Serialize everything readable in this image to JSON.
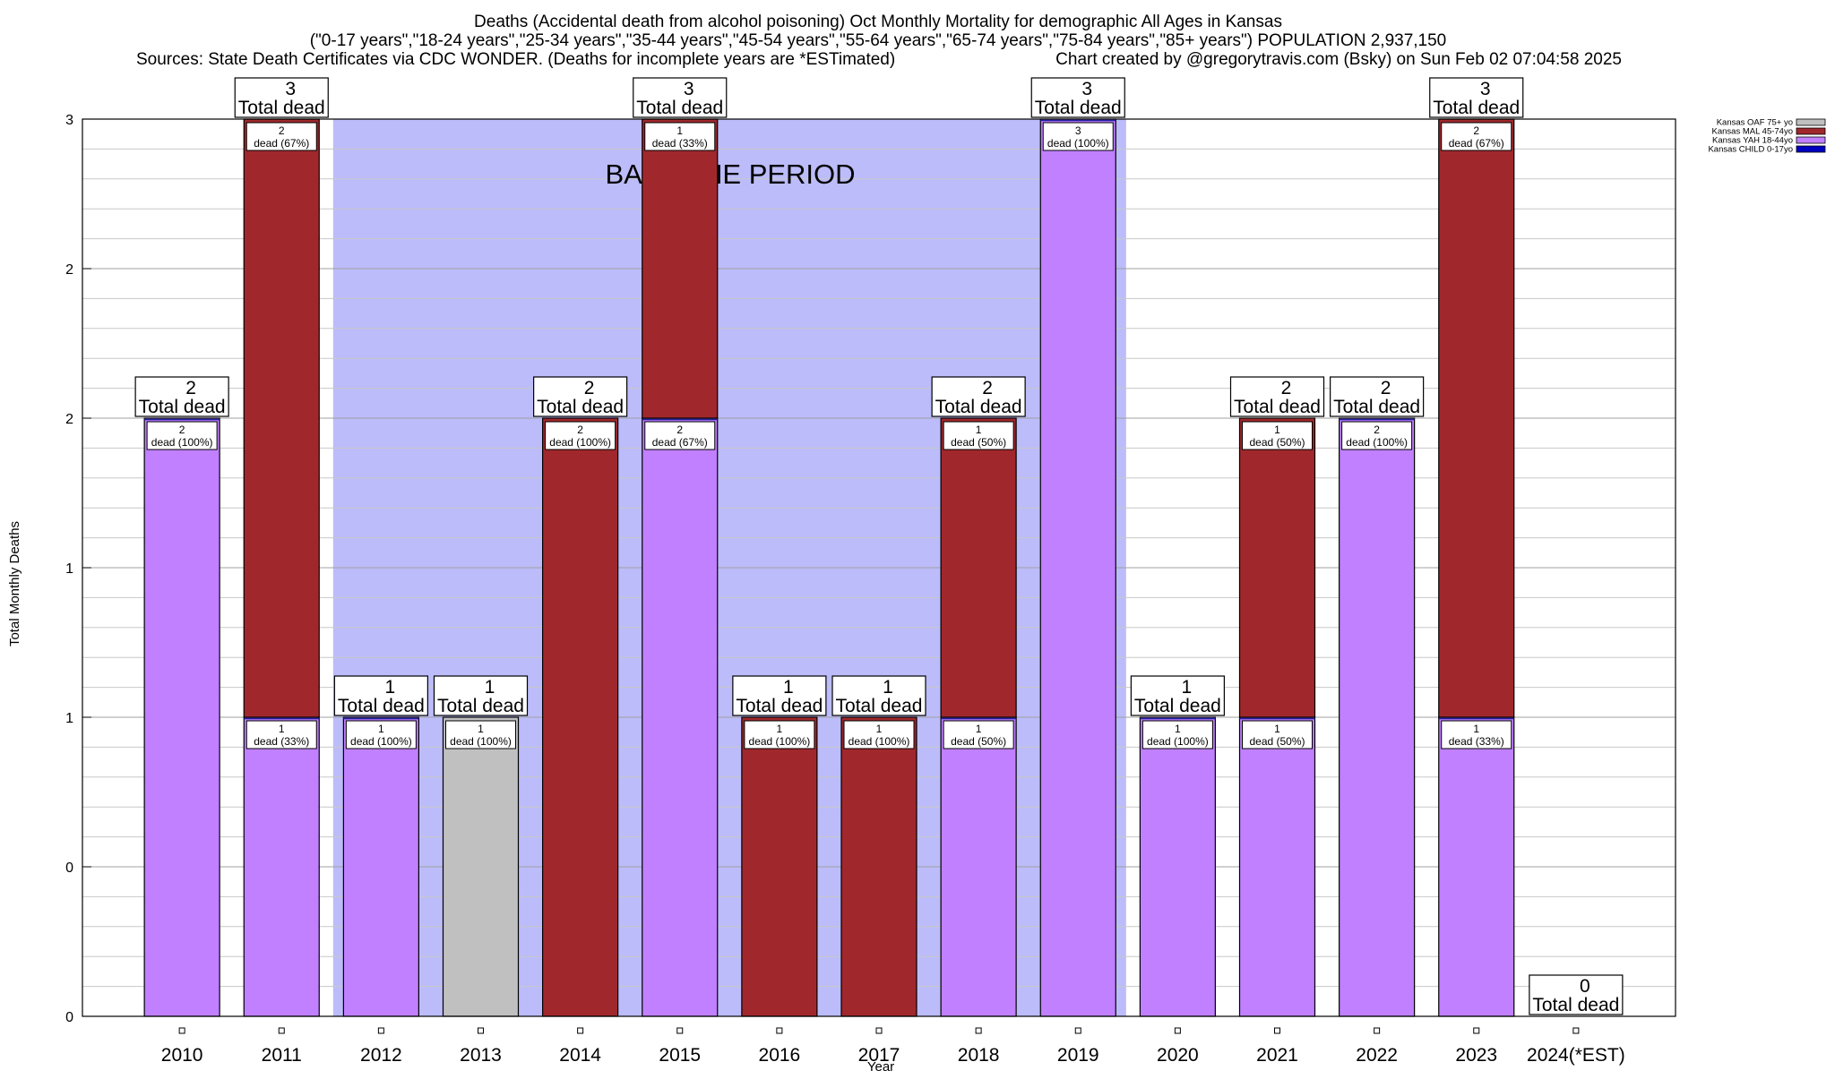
{
  "chart_data": {
    "type": "bar",
    "stacked": true,
    "title_lines": [
      "Deaths (Accidental death from alcohol poisoning) Oct Monthly Mortality for demographic All Ages in Kansas",
      "(\"0-17 years\",\"18-24 years\",\"25-34 years\",\"35-44 years\",\"45-54 years\",\"55-64 years\",\"65-74 years\",\"75-84 years\",\"85+ years\") POPULATION 2,937,150"
    ],
    "sources_text": "Sources: State Death Certificates via CDC WONDER. (Deaths for incomplete years are *ESTimated)",
    "credit_text": "Chart created by @gregorytravis.com (Bsky) on Sun Feb 02 07:04:58 2025",
    "xlabel": "Year",
    "ylabel": "Total Monthly Deaths",
    "ylim": [
      0,
      3
    ],
    "y_tick_values": [
      0,
      0.5,
      1,
      1.5,
      2,
      2.5,
      3
    ],
    "y_tick_labels": [
      "0",
      "0",
      "1",
      "1",
      "2",
      "2",
      "3"
    ],
    "grid": true,
    "legend_position": "top-right",
    "baseline_label": "BASELINE PERIOD",
    "baseline_range": [
      "2012",
      "2019"
    ],
    "total_caption": "Total dead",
    "categories": [
      "2010",
      "2011",
      "2012",
      "2013",
      "2014",
      "2015",
      "2016",
      "2017",
      "2018",
      "2019",
      "2020",
      "2021",
      "2022",
      "2023",
      "2024(*EST)"
    ],
    "series": [
      {
        "name": "Kansas OAF 75+ yo",
        "color": "#c0c0c0",
        "values": [
          0,
          0,
          0,
          1,
          0,
          0,
          0,
          0,
          0,
          0,
          0,
          0,
          0,
          0,
          0
        ]
      },
      {
        "name": "Kansas MAL 45-74yo",
        "color": "#a0282c",
        "values": [
          0,
          2,
          0,
          0,
          2,
          1,
          1,
          1,
          1,
          0,
          0,
          1,
          0,
          2,
          0
        ]
      },
      {
        "name": "Kansas YAH 18-44yo",
        "color": "#c080ff",
        "values": [
          2,
          1,
          1,
          0,
          0,
          2,
          0,
          0,
          1,
          3,
          1,
          1,
          2,
          1,
          0
        ]
      },
      {
        "name": "Kansas CHILD 0-17yo",
        "color": "#0000c0",
        "values": [
          0,
          0,
          0,
          0,
          0,
          0,
          0,
          0,
          0,
          0,
          0,
          0,
          0,
          0,
          0
        ]
      }
    ],
    "stack_order": [
      "Kansas YAH 18-44yo",
      "Kansas OAF 75+ yo",
      "Kansas MAL 45-74yo"
    ],
    "totals": [
      2,
      3,
      1,
      1,
      2,
      3,
      1,
      1,
      2,
      3,
      1,
      2,
      2,
      3,
      0
    ],
    "segment_labels": [
      [
        {
          "series": "Kansas YAH 18-44yo",
          "count": "2",
          "text": "dead (100%)"
        }
      ],
      [
        {
          "series": "Kansas YAH 18-44yo",
          "count": "1",
          "text": "dead (33%)"
        },
        {
          "series": "Kansas MAL 45-74yo",
          "count": "2",
          "text": "dead (67%)"
        }
      ],
      [
        {
          "series": "Kansas YAH 18-44yo",
          "count": "1",
          "text": "dead (100%)"
        }
      ],
      [
        {
          "series": "Kansas OAF 75+ yo",
          "count": "1",
          "text": "dead (100%)"
        }
      ],
      [
        {
          "series": "Kansas MAL 45-74yo",
          "count": "2",
          "text": "dead (100%)"
        }
      ],
      [
        {
          "series": "Kansas YAH 18-44yo",
          "count": "2",
          "text": "dead (67%)"
        },
        {
          "series": "Kansas MAL 45-74yo",
          "count": "1",
          "text": "dead (33%)"
        }
      ],
      [
        {
          "series": "Kansas MAL 45-74yo",
          "count": "1",
          "text": "dead (100%)"
        }
      ],
      [
        {
          "series": "Kansas MAL 45-74yo",
          "count": "1",
          "text": "dead (100%)"
        }
      ],
      [
        {
          "series": "Kansas YAH 18-44yo",
          "count": "1",
          "text": "dead (50%)"
        },
        {
          "series": "Kansas MAL 45-74yo",
          "count": "1",
          "text": "dead (50%)"
        }
      ],
      [
        {
          "series": "Kansas YAH 18-44yo",
          "count": "3",
          "text": "dead (100%)"
        }
      ],
      [
        {
          "series": "Kansas YAH 18-44yo",
          "count": "1",
          "text": "dead (100%)"
        }
      ],
      [
        {
          "series": "Kansas YAH 18-44yo",
          "count": "1",
          "text": "dead (50%)"
        },
        {
          "series": "Kansas MAL 45-74yo",
          "count": "1",
          "text": "dead (50%)"
        }
      ],
      [
        {
          "series": "Kansas YAH 18-44yo",
          "count": "2",
          "text": "dead (100%)"
        }
      ],
      [
        {
          "series": "Kansas YAH 18-44yo",
          "count": "1",
          "text": "dead (33%)"
        },
        {
          "series": "Kansas MAL 45-74yo",
          "count": "2",
          "text": "dead (67%)"
        }
      ],
      []
    ],
    "colors": {
      "baseline_band": "#bcbcfa",
      "bar_outline": "#000000",
      "grid": "#c8c8c8"
    }
  }
}
